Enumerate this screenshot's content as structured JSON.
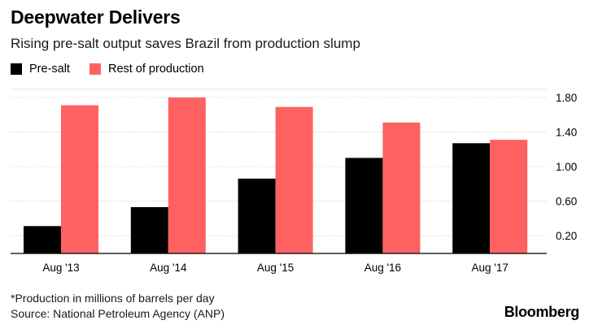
{
  "header": {
    "title": "Deepwater Delivers",
    "subtitle": "Rising pre-salt output saves Brazil from production slump"
  },
  "legend": [
    {
      "label": "Pre-salt",
      "color": "#000000"
    },
    {
      "label": "Rest of production",
      "color": "#ff6161"
    }
  ],
  "chart_data": {
    "type": "bar",
    "categories": [
      "Aug '13",
      "Aug '14",
      "Aug '15",
      "Aug '16",
      "Aug '17"
    ],
    "series": [
      {
        "name": "Pre-salt",
        "color": "#000000",
        "values": [
          0.31,
          0.53,
          0.86,
          1.1,
          1.27
        ]
      },
      {
        "name": "Rest of production",
        "color": "#ff6161",
        "values": [
          1.71,
          1.8,
          1.69,
          1.51,
          1.31
        ]
      }
    ],
    "yticks": [
      "1.80",
      "1.40",
      "1.00",
      "0.60",
      "0.20"
    ],
    "ytick_values": [
      1.8,
      1.4,
      1.0,
      0.6,
      0.2
    ],
    "ylim": [
      0,
      1.95
    ],
    "y_axis_position": "right",
    "grid": true
  },
  "footer": {
    "note": "*Production in millions of barrels per day",
    "source": "Source: National Petroleum Agency (ANP)",
    "brand": "Bloomberg"
  }
}
